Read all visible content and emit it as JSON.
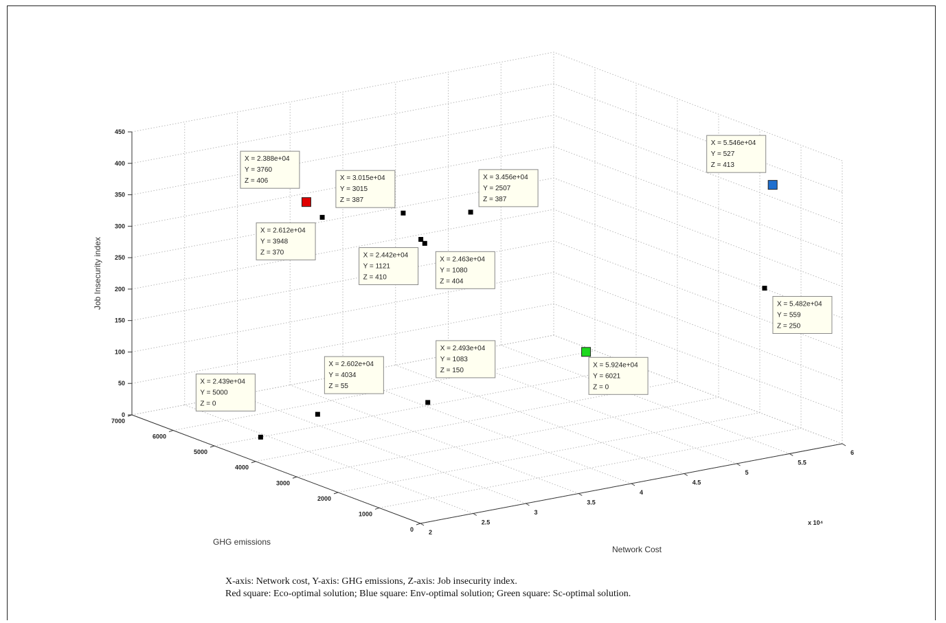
{
  "caption": {
    "line1": "X-axis: Network cost, Y-axis: GHG emissions, Z-axis: Job insecurity index.",
    "line2": "Red square: Eco-optimal solution; Blue square: Env-optimal solution; Green square: Sc-optimal solution."
  },
  "chart_data": {
    "type": "scatter",
    "dimensions": 3,
    "xlabel": "Network Cost",
    "ylabel": "GHG emissions",
    "zlabel": "Job Insecurity index",
    "x_exponent_label": "x 10⁴",
    "xlim": [
      20000,
      60000
    ],
    "ylim": [
      0,
      7000
    ],
    "zlim": [
      0,
      450
    ],
    "x_ticks": [
      "2",
      "2.5",
      "3",
      "3.5",
      "4",
      "4.5",
      "5",
      "5.5",
      "6"
    ],
    "y_ticks": [
      "0",
      "1000",
      "2000",
      "3000",
      "4000",
      "5000",
      "6000",
      "7000"
    ],
    "z_ticks": [
      "0",
      "50",
      "100",
      "150",
      "200",
      "250",
      "300",
      "350",
      "400",
      "450"
    ],
    "grid": true,
    "colors": {
      "normal": "#000000",
      "eco": "#e00000",
      "env": "#1f6fcf",
      "sc": "#1ed81e"
    },
    "points": [
      {
        "x": 23880,
        "y": 3760,
        "z": 406,
        "label": [
          "X = 2.388e+04",
          "Y = 3760",
          "Z = 406"
        ],
        "category": "eco",
        "name": "Eco-optimal solution"
      },
      {
        "x": 55460,
        "y": 527,
        "z": 413,
        "label": [
          "X = 5.546e+04",
          "Y = 527",
          "Z = 413"
        ],
        "category": "env",
        "name": "Env-optimal solution"
      },
      {
        "x": 59240,
        "y": 6021,
        "z": 0,
        "label": [
          "X = 5.924e+04",
          "Y = 6021",
          "Z = 0"
        ],
        "category": "sc",
        "name": "Sc-optimal solution"
      },
      {
        "x": 30150,
        "y": 3015,
        "z": 387,
        "label": [
          "X = 3.015e+04",
          "Y = 3015",
          "Z = 387"
        ],
        "category": "normal"
      },
      {
        "x": 34560,
        "y": 2507,
        "z": 387,
        "label": [
          "X = 3.456e+04",
          "Y = 2507",
          "Z = 387"
        ],
        "category": "normal"
      },
      {
        "x": 26120,
        "y": 3948,
        "z": 370,
        "label": [
          "X = 2.612e+04",
          "Y = 3948",
          "Z = 370"
        ],
        "category": "normal"
      },
      {
        "x": 24420,
        "y": 1121,
        "z": 410,
        "label": [
          "X = 2.442e+04",
          "Y = 1121",
          "Z = 410"
        ],
        "category": "normal"
      },
      {
        "x": 24630,
        "y": 1080,
        "z": 404,
        "label": [
          "X = 2.463e+04",
          "Y = 1080",
          "Z = 404"
        ],
        "category": "normal"
      },
      {
        "x": 54820,
        "y": 559,
        "z": 250,
        "label": [
          "X = 5.482e+04",
          "Y = 559",
          "Z = 250"
        ],
        "category": "normal"
      },
      {
        "x": 24930,
        "y": 1083,
        "z": 150,
        "label": [
          "X = 2.493e+04",
          "Y = 1083",
          "Z = 150"
        ],
        "category": "normal"
      },
      {
        "x": 26020,
        "y": 4034,
        "z": 55,
        "label": [
          "X = 2.602e+04",
          "Y = 4034",
          "Z = 55"
        ],
        "category": "normal"
      },
      {
        "x": 24390,
        "y": 5000,
        "z": 0,
        "label": [
          "X = 2.439e+04",
          "Y = 5000",
          "Z = 0"
        ],
        "category": "normal"
      }
    ]
  }
}
